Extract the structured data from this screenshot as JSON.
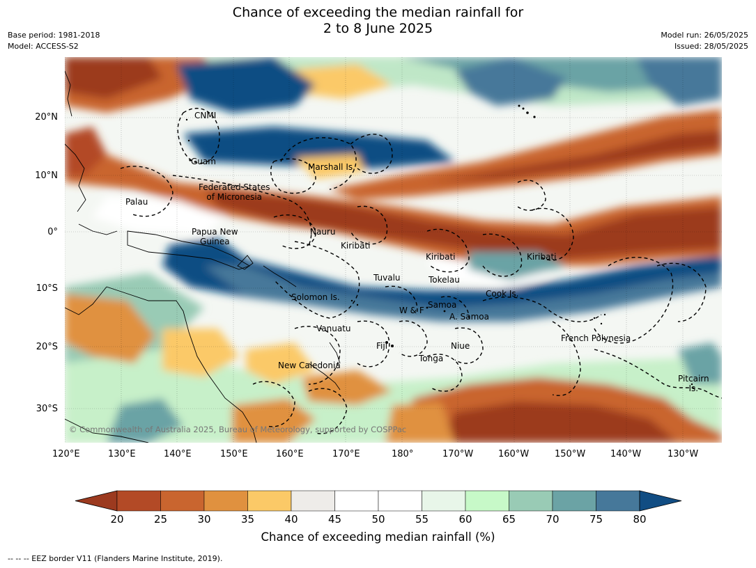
{
  "title_line1": "Chance of exceeding the median rainfall for",
  "title_line2": "2 to 8 June 2025",
  "info_left": [
    "Base period: 1981-2018",
    "Model: ACCESS-S2"
  ],
  "info_right": [
    "Model run: 26/05/2025",
    "Issued: 28/05/2025"
  ],
  "lat_ticks": [
    "20°N",
    "10°N",
    "0°",
    "10°S",
    "20°S",
    "30°S"
  ],
  "lon_ticks": [
    "120°E",
    "130°E",
    "140°E",
    "150°E",
    "160°E",
    "170°E",
    "180°",
    "170°W",
    "160°W",
    "150°W",
    "140°W",
    "130°W"
  ],
  "region_labels": [
    {
      "text": "CNMI"
    },
    {
      "text": "Guam"
    },
    {
      "text": "Marshall Is."
    },
    {
      "text": "Federated States\nof Micronesia"
    },
    {
      "text": "Palau"
    },
    {
      "text": "Papua New\nGuinea"
    },
    {
      "text": "Nauru"
    },
    {
      "text": "Kiribati"
    },
    {
      "text": "Kiribati"
    },
    {
      "text": "Kiribati"
    },
    {
      "text": "Tuvalu"
    },
    {
      "text": "Tokelau"
    },
    {
      "text": "Solomon Is."
    },
    {
      "text": "Cook Is."
    },
    {
      "text": "Samoa"
    },
    {
      "text": "W & F"
    },
    {
      "text": "A. Samoa"
    },
    {
      "text": "Vanuatu"
    },
    {
      "text": "Fiji"
    },
    {
      "text": "Niue"
    },
    {
      "text": "French Polynesia"
    },
    {
      "text": "Tonga"
    },
    {
      "text": "New Caledonia"
    },
    {
      "text": "Pitcairn\nIs."
    }
  ],
  "copyright": "© Commonwealth of Australia 2025, Bureau of Meteorology, supported by COSPPac",
  "colorbar": {
    "labels": [
      "20",
      "25",
      "30",
      "35",
      "40",
      "45",
      "50",
      "55",
      "60",
      "65",
      "70",
      "75",
      "80"
    ],
    "colors": [
      "#9c3a1f",
      "#b34a26",
      "#c9652f",
      "#e0913f",
      "#fbc967",
      "#eeece9",
      "#ffffff",
      "#ffffff",
      "#e8f6e9",
      "#c7f9c8",
      "#99cbb5",
      "#6ba3a5",
      "#46789a",
      "#114d83"
    ],
    "title": "Chance of exceeding median rainfall (%)"
  },
  "footer": "--  --  -- EEZ border V11 (Flanders Marine Institute, 2019)."
}
